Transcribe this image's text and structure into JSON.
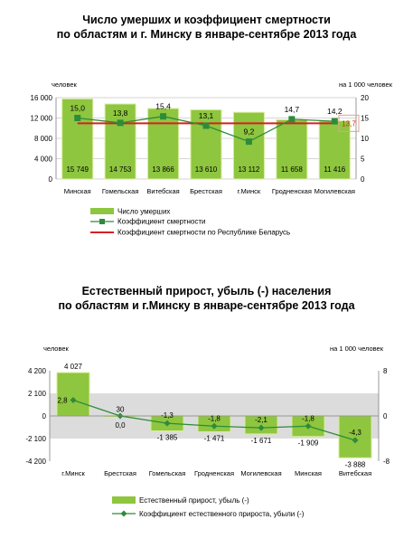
{
  "chart_data": [
    {
      "type": "bar",
      "title_lines": [
        "Число умерших и коэффициент смертности",
        "по областям и г. Минску в январе-сентябре 2013 года"
      ],
      "left_unit": "человек",
      "right_unit": "на 1 000 человек",
      "categories": [
        "Минская",
        "Гомельская",
        "Витебская",
        "Брестская",
        "г.Минск",
        "Гродненская",
        "Могилевская"
      ],
      "ylim": [
        0,
        16000
      ],
      "yticks": [
        0,
        4000,
        8000,
        12000,
        16000
      ],
      "ytick_labels": [
        "0",
        "4 000",
        "8 000",
        "12 000",
        "16 000"
      ],
      "y2lim": [
        0,
        20
      ],
      "y2ticks": [
        0,
        5,
        10,
        15,
        20
      ],
      "y2tick_labels": [
        "0",
        "5",
        "10",
        "15",
        "20"
      ],
      "grid": true,
      "series": [
        {
          "name": "Число умерших",
          "kind": "bar",
          "axis": "left",
          "color": "#8ec63f",
          "values": [
            15749,
            14753,
            13866,
            13610,
            13112,
            11658,
            11416
          ],
          "value_labels": [
            "15 749",
            "14 753",
            "13 866",
            "13 610",
            "13 112",
            "11 658",
            "11 416"
          ]
        },
        {
          "name": "Коэффициент смертности",
          "kind": "line",
          "axis": "right",
          "color": "#2e8b3a",
          "marker": "square",
          "values": [
            15.0,
            13.8,
            15.4,
            13.1,
            9.2,
            14.7,
            14.2
          ],
          "value_labels": [
            "15,0",
            "13,8",
            "15,4",
            "13,1",
            "9,2",
            "14,7",
            "14,2"
          ]
        },
        {
          "name": "Коэффициент смертности по Республике Беларусь",
          "kind": "hline",
          "axis": "right",
          "color": "#d62020",
          "value": 13.7,
          "value_label": "13,7"
        }
      ],
      "legend_position": "bottom",
      "bar_color": "#8ec63f",
      "bar_edge_color": "#d8ec9a",
      "grid_color": "#c9c9c9",
      "highlight_color": "#e2a08c"
    },
    {
      "type": "bar",
      "title_lines": [
        "Естественный прирост, убыль (-) населения",
        "по областям и г.Минску в январе-сентябре 2013 года"
      ],
      "left_unit": "человек",
      "right_unit": "на 1 000 человек",
      "categories": [
        "г.Минск",
        "Брестская",
        "Гомельская",
        "Гродненская",
        "Могилевская",
        "Минская",
        "Витебская"
      ],
      "ylim": [
        -4200,
        4200
      ],
      "yticks": [
        -4200,
        -2100,
        0,
        2100,
        4200
      ],
      "ytick_labels": [
        "-4 200",
        "-2 100",
        "0",
        "2 100",
        "4 200"
      ],
      "y2lim": [
        -8,
        8
      ],
      "y2ticks": [
        -8,
        0,
        8
      ],
      "y2tick_labels": [
        "-8",
        "0",
        "8"
      ],
      "grid": false,
      "series": [
        {
          "name": "Естественный прирост, убыль (-)",
          "kind": "bar",
          "axis": "left",
          "color": "#8ec63f",
          "values": [
            4027,
            30,
            -1385,
            -1471,
            -1671,
            -1909,
            -3888
          ],
          "value_labels": [
            "4 027",
            "30",
            "-1 385",
            "-1 471",
            "-1 671",
            "-1 909",
            "-3 888"
          ]
        },
        {
          "name": "Коэффициент естественного прироста, убыли (-)",
          "kind": "line",
          "axis": "right",
          "color": "#2e8b3a",
          "marker": "diamond",
          "values": [
            2.8,
            0.0,
            -1.3,
            -1.8,
            -2.1,
            -1.8,
            -4.3
          ],
          "value_labels": [
            "2,8",
            "0,0",
            "-1,3",
            "-1,8",
            "-2,1",
            "-1,8",
            "-4,3"
          ]
        }
      ],
      "legend_position": "bottom",
      "bar_color": "#8ec63f",
      "bar_edge_color": "#d8ec9a",
      "band_color": "#dcdcdc"
    }
  ]
}
